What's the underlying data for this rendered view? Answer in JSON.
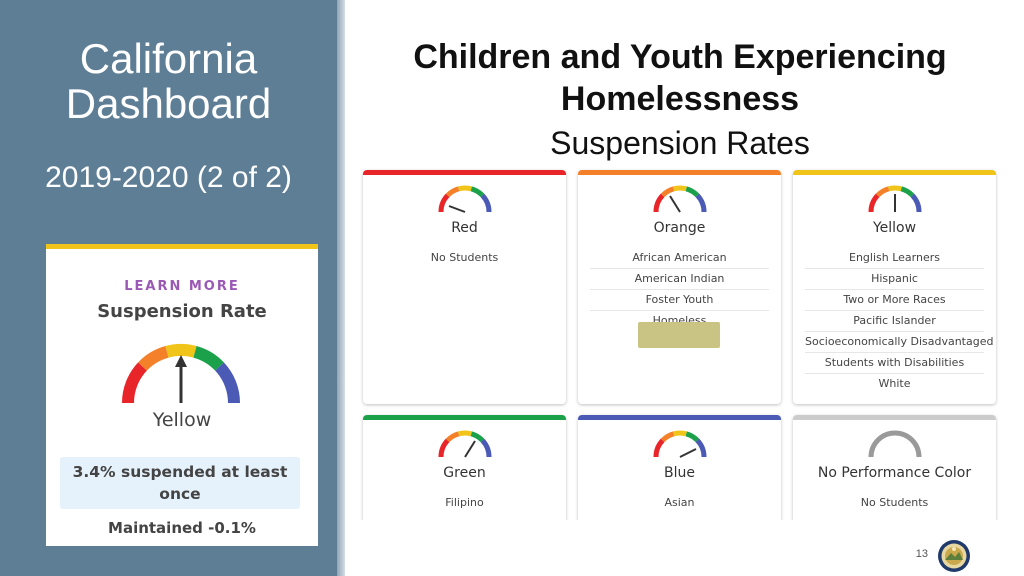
{
  "sidebar": {
    "title": "California Dashboard",
    "subtitle": "2019-2020 (2 of 2)"
  },
  "rate_card": {
    "learn_more": "LEARN MORE",
    "title": "Suspension Rate",
    "color": "Yellow",
    "value_text": "3.4% suspended at least once",
    "change_text": "Maintained -0.1%",
    "gauge_icon": "gauge-yellow-icon",
    "accent_color": "#f0c419"
  },
  "heading": {
    "title": "Children and Youth Experiencing Homelessness",
    "subtitle": "Suspension Rates"
  },
  "cards": [
    {
      "label": "Red",
      "color": "#e8262a",
      "groups": [
        "No Students"
      ]
    },
    {
      "label": "Orange",
      "color": "#f4812a",
      "groups": [
        "African American",
        "American Indian",
        "Foster Youth",
        "Homeless"
      ]
    },
    {
      "label": "Yellow",
      "color": "#f0c419",
      "groups": [
        "English Learners",
        "Hispanic",
        "Two or More Races",
        "Pacific Islander",
        "Socioeconomically Disadvantaged",
        "Students with Disabilities",
        "White"
      ]
    },
    {
      "label": "Green",
      "color": "#1aa14a",
      "groups": [
        "Filipino"
      ]
    },
    {
      "label": "Blue",
      "color": "#4a5ab5",
      "groups": [
        "Asian"
      ]
    },
    {
      "label": "No Performance Color",
      "color": "#cccccc",
      "groups": [
        "No Students"
      ]
    }
  ],
  "footer": {
    "page_number": "13",
    "seal_icon": "state-seal-icon"
  }
}
